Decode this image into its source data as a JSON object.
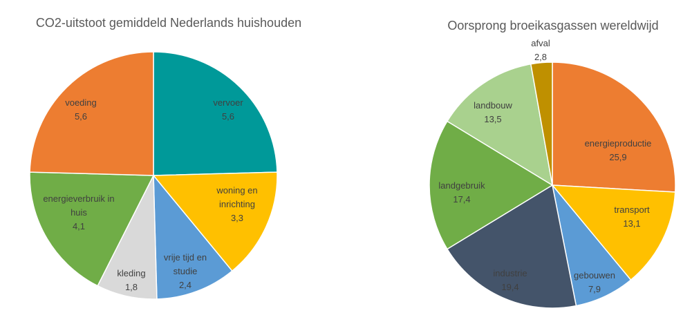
{
  "chart_data": [
    {
      "type": "pie",
      "title": "CO2-uitstoot gemiddeld Nederlands huishouden",
      "categories": [
        "vervoer",
        "woning en inrichting",
        "vrije tijd en studie",
        "kleding",
        "energieverbruik in huis",
        "voeding"
      ],
      "values": [
        5.6,
        3.3,
        2.4,
        1.8,
        4.1,
        5.6
      ],
      "value_labels": [
        "5,6",
        "3,3",
        "2,4",
        "1,8",
        "4,1",
        "5,6"
      ],
      "colors": [
        "#009999",
        "#FFC000",
        "#5B9BD5",
        "#D9D9D9",
        "#70AD47",
        "#ED7D31"
      ]
    },
    {
      "type": "pie",
      "title": "Oorsprong broeikasgassen wereldwijd",
      "categories": [
        "energieproductie",
        "transport",
        "gebouwen",
        "industrie",
        "landgebruik",
        "landbouw",
        "afval"
      ],
      "values": [
        25.9,
        13.1,
        7.9,
        19.4,
        17.4,
        13.5,
        2.8
      ],
      "value_labels": [
        "25,9",
        "13,1",
        "7,9",
        "19,4",
        "17,4",
        "13,5",
        "2,8"
      ],
      "colors": [
        "#ED7D31",
        "#FFC000",
        "#5B9BD5",
        "#44546A",
        "#70AD47",
        "#A9D18E",
        "#BF9000"
      ]
    }
  ]
}
